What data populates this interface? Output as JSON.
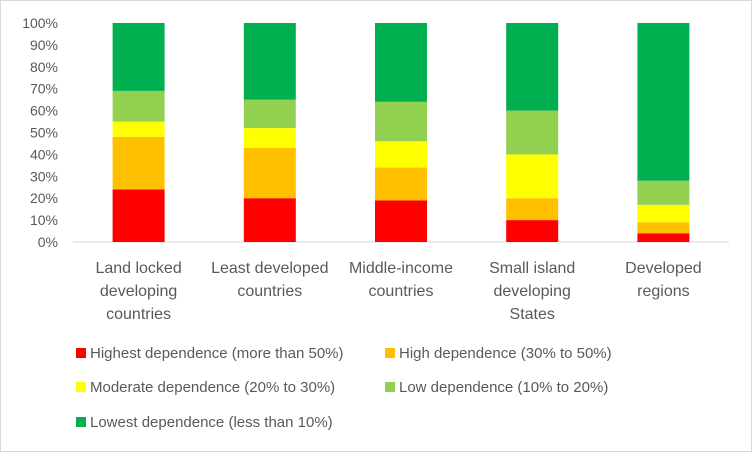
{
  "chart_data": {
    "type": "bar",
    "stacked": true,
    "percent_stacked": true,
    "categories": [
      [
        "Land locked",
        "developing",
        "countries"
      ],
      [
        "Least developed",
        "countries"
      ],
      [
        "Middle-income",
        "countries"
      ],
      [
        "Small island",
        "developing",
        "States"
      ],
      [
        "Developed",
        "regions"
      ]
    ],
    "y_ticks": [
      "0%",
      "10%",
      "20%",
      "30%",
      "40%",
      "50%",
      "60%",
      "70%",
      "80%",
      "90%",
      "100%"
    ],
    "ylim": [
      0,
      100
    ],
    "grid": false,
    "legend_position": "bottom",
    "series": [
      {
        "name": "Highest dependence (more than 50%)",
        "color": "#ff0000",
        "values": [
          24,
          20,
          19,
          10,
          4
        ]
      },
      {
        "name": "High dependence (30% to 50%)",
        "color": "#ffc000",
        "values": [
          24,
          23,
          15,
          10,
          5
        ]
      },
      {
        "name": "Moderate dependence (20% to 30%)",
        "color": "#ffff00",
        "values": [
          7,
          9,
          12,
          20,
          8
        ]
      },
      {
        "name": "Low dependence (10% to 20%)",
        "color": "#92d050",
        "values": [
          14,
          13,
          18,
          20,
          11
        ]
      },
      {
        "name": "Lowest dependence (less than 10%)",
        "color": "#00b050",
        "values": [
          31,
          35,
          36,
          40,
          72
        ]
      }
    ]
  }
}
